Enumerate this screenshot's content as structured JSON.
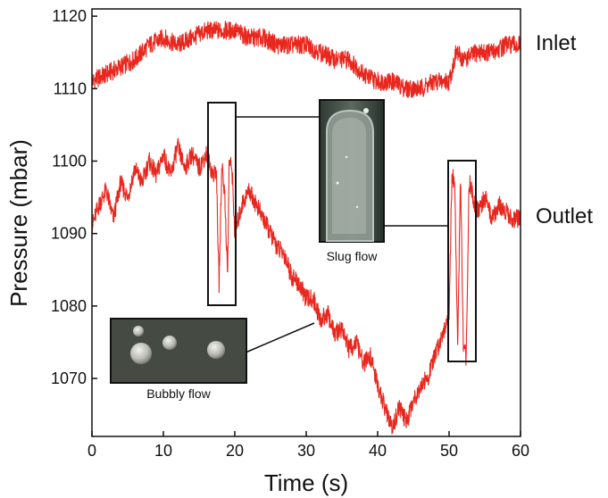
{
  "chart_data": {
    "type": "line",
    "title": "",
    "xlabel": "Time (s)",
    "ylabel": "Pressure (mbar)",
    "xlim": [
      0,
      60
    ],
    "ylim": [
      1062,
      1121
    ],
    "x_ticks": [
      0,
      10,
      20,
      30,
      40,
      50,
      60
    ],
    "y_ticks": [
      1070,
      1080,
      1090,
      1100,
      1110,
      1120
    ],
    "grid": false,
    "legend": "none",
    "series": [
      {
        "name": "Inlet",
        "color": "#e8281e",
        "x": [
          0,
          2,
          4,
          6,
          8,
          10,
          12,
          14,
          16,
          18,
          20,
          22,
          24,
          26,
          28,
          30,
          32,
          34,
          36,
          38,
          40,
          42,
          44,
          46,
          48,
          50,
          51,
          52,
          54,
          56,
          58,
          60
        ],
        "y": [
          1111,
          1112,
          1113,
          1114,
          1116,
          1117,
          1116,
          1117,
          1118,
          1118,
          1118,
          1117,
          1117,
          1116,
          1116,
          1116,
          1115,
          1114,
          1114,
          1112,
          1111,
          1111,
          1110,
          1110,
          1111,
          1111,
          1115,
          1114,
          1115,
          1115,
          1116,
          1116
        ]
      },
      {
        "name": "Outlet",
        "color": "#e8281e",
        "x": [
          0,
          1,
          2,
          3,
          4,
          5,
          6,
          7,
          8,
          9,
          10,
          11,
          12,
          13,
          14,
          15,
          16,
          17,
          17.4,
          17.8,
          18.2,
          18.6,
          19,
          19.2,
          19.6,
          20,
          21,
          22,
          23,
          24,
          25,
          26,
          27,
          28,
          29,
          30,
          31,
          32,
          33,
          34,
          35,
          36,
          37,
          38,
          39,
          40,
          41,
          42,
          43,
          44,
          45,
          46,
          47,
          48,
          49,
          50,
          50.4,
          50.8,
          51.2,
          51.6,
          52,
          52.4,
          52.8,
          53.2,
          53.6,
          54,
          55,
          56,
          57,
          58,
          59,
          60
        ],
        "y": [
          1091,
          1094,
          1096,
          1092,
          1097,
          1095,
          1099,
          1097,
          1100,
          1098,
          1101,
          1098,
          1102,
          1099,
          1101,
          1099,
          1101,
          1098,
          1099,
          1083,
          1100,
          1095,
          1084,
          1100,
          1099,
          1090,
          1094,
          1096,
          1094,
          1092,
          1090,
          1088,
          1087,
          1084,
          1083,
          1081,
          1081,
          1078,
          1079,
          1076,
          1077,
          1074,
          1075,
          1072,
          1073,
          1069,
          1066,
          1063,
          1066,
          1064,
          1067,
          1069,
          1070,
          1073,
          1076,
          1079,
          1098,
          1097,
          1074,
          1098,
          1074,
          1073,
          1097,
          1096,
          1094,
          1093,
          1095,
          1092,
          1094,
          1093,
          1092,
          1092
        ]
      }
    ],
    "series_labels": {
      "inlet": "Inlet",
      "outlet": "Outlet"
    },
    "annotations": {
      "slug_flow": "Slug flow",
      "bubbly_flow": "Bubbly flow"
    }
  }
}
